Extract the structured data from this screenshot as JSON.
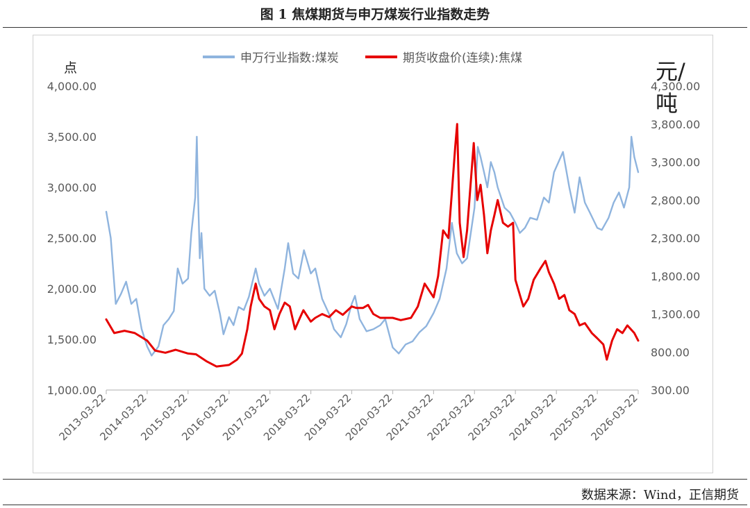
{
  "figure": {
    "title": "图 1   焦煤期货与申万煤炭行业指数走势",
    "source": "数据来源：Wind，正信期货"
  },
  "colors": {
    "coal_index": "#8fb4de",
    "coking_coal": "#e60000",
    "axis": "#bdbdbd",
    "text": "#595959"
  },
  "chart_data": {
    "type": "line",
    "title": "",
    "legend_position": "top",
    "grid": false,
    "x_ticks": [
      "2013-03-22",
      "2014-03-22",
      "2015-03-22",
      "2016-03-22",
      "2017-03-22",
      "2018-03-22",
      "2019-03-22",
      "2020-03-22",
      "2021-03-22",
      "2022-03-22",
      "2023-03-22",
      "2024-03-22",
      "2025-03-22",
      "2026-03-22"
    ],
    "left_axis": {
      "label": "点",
      "min": 1000,
      "max": 4000,
      "ticks": [
        "1,000.00",
        "1,500.00",
        "2,000.00",
        "2,500.00",
        "3,000.00",
        "3,500.00",
        "4,000.00"
      ]
    },
    "right_axis": {
      "label": "元/吨",
      "min": 300,
      "max": 4300,
      "ticks": [
        "300.00",
        "800.00",
        "1,300.00",
        "1,800.00",
        "2,300.00",
        "2,800.00",
        "3,300.00",
        "3,800.00",
        "4,300.00"
      ]
    },
    "series": [
      {
        "name": "申万行业指数:煤炭",
        "axis": "left",
        "points": [
          [
            "2013-03-22",
            2760
          ],
          [
            "2013-05-01",
            2500
          ],
          [
            "2013-06-15",
            1850
          ],
          [
            "2013-08-01",
            1950
          ],
          [
            "2013-09-15",
            2070
          ],
          [
            "2013-11-01",
            1850
          ],
          [
            "2013-12-15",
            1900
          ],
          [
            "2014-02-01",
            1600
          ],
          [
            "2014-03-22",
            1430
          ],
          [
            "2014-05-01",
            1340
          ],
          [
            "2014-07-01",
            1430
          ],
          [
            "2014-08-15",
            1640
          ],
          [
            "2014-10-01",
            1700
          ],
          [
            "2014-11-15",
            1780
          ],
          [
            "2014-12-20",
            2200
          ],
          [
            "2015-02-01",
            2050
          ],
          [
            "2015-03-22",
            2100
          ],
          [
            "2015-04-20",
            2550
          ],
          [
            "2015-05-25",
            2900
          ],
          [
            "2015-06-08",
            3500
          ],
          [
            "2015-06-20",
            2900
          ],
          [
            "2015-07-05",
            2300
          ],
          [
            "2015-07-20",
            2550
          ],
          [
            "2015-08-15",
            2000
          ],
          [
            "2015-10-01",
            1930
          ],
          [
            "2015-11-15",
            1980
          ],
          [
            "2016-01-01",
            1750
          ],
          [
            "2016-02-01",
            1550
          ],
          [
            "2016-03-22",
            1720
          ],
          [
            "2016-05-01",
            1640
          ],
          [
            "2016-06-15",
            1820
          ],
          [
            "2016-08-01",
            1790
          ],
          [
            "2016-09-15",
            1920
          ],
          [
            "2016-11-15",
            2200
          ],
          [
            "2016-12-15",
            2050
          ],
          [
            "2017-02-01",
            1930
          ],
          [
            "2017-03-22",
            2000
          ],
          [
            "2017-06-01",
            1800
          ],
          [
            "2017-08-01",
            2200
          ],
          [
            "2017-09-01",
            2450
          ],
          [
            "2017-10-15",
            2150
          ],
          [
            "2017-12-01",
            2100
          ],
          [
            "2018-01-20",
            2380
          ],
          [
            "2018-03-22",
            2150
          ],
          [
            "2018-05-01",
            2200
          ],
          [
            "2018-07-01",
            1900
          ],
          [
            "2018-09-01",
            1750
          ],
          [
            "2018-10-15",
            1600
          ],
          [
            "2018-12-15",
            1520
          ],
          [
            "2019-02-01",
            1650
          ],
          [
            "2019-03-22",
            1850
          ],
          [
            "2019-04-20",
            1930
          ],
          [
            "2019-06-01",
            1700
          ],
          [
            "2019-08-01",
            1580
          ],
          [
            "2019-10-01",
            1600
          ],
          [
            "2019-12-01",
            1640
          ],
          [
            "2020-01-15",
            1700
          ],
          [
            "2020-03-22",
            1420
          ],
          [
            "2020-05-15",
            1360
          ],
          [
            "2020-07-15",
            1450
          ],
          [
            "2020-09-15",
            1480
          ],
          [
            "2020-11-15",
            1570
          ],
          [
            "2021-01-15",
            1630
          ],
          [
            "2021-03-22",
            1760
          ],
          [
            "2021-05-15",
            1900
          ],
          [
            "2021-07-15",
            2200
          ],
          [
            "2021-09-01",
            2650
          ],
          [
            "2021-09-15",
            2550
          ],
          [
            "2021-10-15",
            2350
          ],
          [
            "2021-12-01",
            2250
          ],
          [
            "2022-01-15",
            2300
          ],
          [
            "2022-03-22",
            2800
          ],
          [
            "2022-04-20",
            3400
          ],
          [
            "2022-05-15",
            3300
          ],
          [
            "2022-06-15",
            3150
          ],
          [
            "2022-07-15",
            3000
          ],
          [
            "2022-08-15",
            3250
          ],
          [
            "2022-09-15",
            3150
          ],
          [
            "2022-10-15",
            3000
          ],
          [
            "2022-12-15",
            2800
          ],
          [
            "2023-02-01",
            2750
          ],
          [
            "2023-03-22",
            2650
          ],
          [
            "2023-05-01",
            2550
          ],
          [
            "2023-06-15",
            2600
          ],
          [
            "2023-08-01",
            2700
          ],
          [
            "2023-10-01",
            2680
          ],
          [
            "2023-12-01",
            2900
          ],
          [
            "2024-01-15",
            2850
          ],
          [
            "2024-03-01",
            3150
          ],
          [
            "2024-05-20",
            3350
          ],
          [
            "2024-07-15",
            3000
          ],
          [
            "2024-09-01",
            2750
          ],
          [
            "2024-10-15",
            3100
          ],
          [
            "2024-12-01",
            2850
          ],
          [
            "2025-01-15",
            2750
          ],
          [
            "2025-03-22",
            2600
          ],
          [
            "2025-05-01",
            2580
          ],
          [
            "2025-07-01",
            2700
          ],
          [
            "2025-08-15",
            2850
          ],
          [
            "2025-10-01",
            2950
          ],
          [
            "2025-11-15",
            2800
          ],
          [
            "2026-01-01",
            3000
          ],
          [
            "2026-01-20",
            3500
          ],
          [
            "2026-02-15",
            3300
          ],
          [
            "2026-03-22",
            3150
          ]
        ]
      },
      {
        "name": "期货收盘价(连续):焦煤",
        "axis": "right",
        "points": [
          [
            "2013-03-22",
            1230
          ],
          [
            "2013-06-01",
            1050
          ],
          [
            "2013-09-01",
            1080
          ],
          [
            "2013-12-01",
            1050
          ],
          [
            "2014-03-22",
            950
          ],
          [
            "2014-06-01",
            820
          ],
          [
            "2014-09-01",
            790
          ],
          [
            "2014-12-01",
            830
          ],
          [
            "2015-03-22",
            780
          ],
          [
            "2015-06-01",
            770
          ],
          [
            "2015-09-01",
            680
          ],
          [
            "2015-12-01",
            610
          ],
          [
            "2016-03-22",
            630
          ],
          [
            "2016-06-01",
            700
          ],
          [
            "2016-07-15",
            780
          ],
          [
            "2016-09-01",
            1100
          ],
          [
            "2016-10-01",
            1400
          ],
          [
            "2016-11-15",
            1700
          ],
          [
            "2016-12-15",
            1500
          ],
          [
            "2017-02-01",
            1400
          ],
          [
            "2017-03-22",
            1350
          ],
          [
            "2017-05-01",
            1100
          ],
          [
            "2017-06-15",
            1300
          ],
          [
            "2017-08-01",
            1450
          ],
          [
            "2017-09-15",
            1400
          ],
          [
            "2017-11-01",
            1100
          ],
          [
            "2017-12-15",
            1250
          ],
          [
            "2018-01-15",
            1350
          ],
          [
            "2018-03-22",
            1200
          ],
          [
            "2018-05-01",
            1250
          ],
          [
            "2018-07-01",
            1300
          ],
          [
            "2018-09-01",
            1260
          ],
          [
            "2018-11-01",
            1350
          ],
          [
            "2019-01-01",
            1290
          ],
          [
            "2019-03-22",
            1400
          ],
          [
            "2019-05-01",
            1380
          ],
          [
            "2019-07-01",
            1380
          ],
          [
            "2019-08-15",
            1420
          ],
          [
            "2019-10-01",
            1300
          ],
          [
            "2019-12-01",
            1250
          ],
          [
            "2020-03-22",
            1250
          ],
          [
            "2020-06-01",
            1220
          ],
          [
            "2020-09-01",
            1250
          ],
          [
            "2020-11-01",
            1400
          ],
          [
            "2021-01-01",
            1700
          ],
          [
            "2021-03-22",
            1520
          ],
          [
            "2021-05-01",
            1800
          ],
          [
            "2021-06-15",
            2400
          ],
          [
            "2021-08-01",
            2300
          ],
          [
            "2021-09-01",
            2900
          ],
          [
            "2021-10-01",
            3500
          ],
          [
            "2021-10-18",
            3800
          ],
          [
            "2021-11-10",
            2500
          ],
          [
            "2021-12-15",
            2050
          ],
          [
            "2022-01-15",
            2400
          ],
          [
            "2022-02-15",
            3000
          ],
          [
            "2022-03-15",
            3550
          ],
          [
            "2022-04-15",
            2800
          ],
          [
            "2022-05-15",
            3000
          ],
          [
            "2022-06-15",
            2600
          ],
          [
            "2022-07-15",
            2100
          ],
          [
            "2022-08-15",
            2400
          ],
          [
            "2022-09-15",
            2600
          ],
          [
            "2022-10-15",
            2800
          ],
          [
            "2022-12-01",
            2500
          ],
          [
            "2023-01-15",
            2450
          ],
          [
            "2023-03-01",
            2500
          ],
          [
            "2023-03-22",
            1750
          ],
          [
            "2023-05-01",
            1550
          ],
          [
            "2023-06-01",
            1400
          ],
          [
            "2023-07-15",
            1500
          ],
          [
            "2023-09-01",
            1750
          ],
          [
            "2023-11-01",
            1900
          ],
          [
            "2023-12-15",
            2000
          ],
          [
            "2024-01-15",
            1850
          ],
          [
            "2024-03-01",
            1700
          ],
          [
            "2024-04-15",
            1500
          ],
          [
            "2024-06-01",
            1550
          ],
          [
            "2024-07-15",
            1350
          ],
          [
            "2024-09-01",
            1300
          ],
          [
            "2024-10-15",
            1150
          ],
          [
            "2024-12-01",
            1180
          ],
          [
            "2025-02-01",
            1050
          ],
          [
            "2025-03-22",
            980
          ],
          [
            "2025-05-15",
            900
          ],
          [
            "2025-06-15",
            700
          ],
          [
            "2025-08-01",
            950
          ],
          [
            "2025-09-15",
            1100
          ],
          [
            "2025-11-01",
            1050
          ],
          [
            "2025-12-15",
            1150
          ],
          [
            "2026-01-15",
            1100
          ],
          [
            "2026-02-15",
            1050
          ],
          [
            "2026-03-22",
            950
          ]
        ]
      }
    ]
  }
}
